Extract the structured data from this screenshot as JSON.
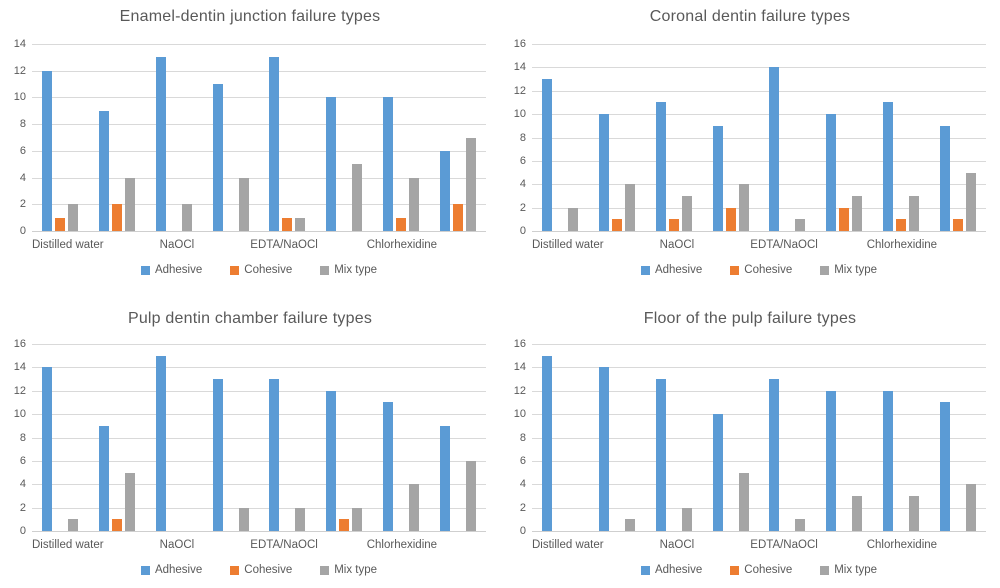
{
  "figure": {
    "background": "#ffffff",
    "text_color": "#595959",
    "gridline_color": "#d9d9d9"
  },
  "series_colors": {
    "adhesive": "#5B9BD5",
    "cohesive": "#ED7D31",
    "mix_type": "#A5A5A5"
  },
  "chart_data": [
    {
      "type": "bar",
      "title": "Enamel-dentin junction failure types",
      "xlabel": "",
      "ylabel": "",
      "ylim": [
        0,
        14
      ],
      "ytick_step": 2,
      "grid": true,
      "legend_position": "bottom",
      "categories": [
        "Distilled water",
        "NaOCl",
        "EDTA/NaOCl",
        "Chlorhexidine"
      ],
      "groups_per_category": 2,
      "series": [
        {
          "name": "Adhesive",
          "color": "#5B9BD5",
          "values": [
            12,
            9,
            13,
            11,
            13,
            10,
            10,
            6
          ]
        },
        {
          "name": "Cohesive",
          "color": "#ED7D31",
          "values": [
            1,
            2,
            null,
            null,
            1,
            null,
            1,
            2
          ]
        },
        {
          "name": "Mix type",
          "color": "#A5A5A5",
          "values": [
            2,
            4,
            2,
            4,
            1,
            5,
            4,
            7
          ]
        }
      ]
    },
    {
      "type": "bar",
      "title": "Coronal dentin failure types",
      "xlabel": "",
      "ylabel": "",
      "ylim": [
        0,
        16
      ],
      "ytick_step": 2,
      "grid": true,
      "legend_position": "bottom",
      "categories": [
        "Distilled water",
        "NaOCl",
        "EDTA/NaOCl",
        "Chlorhexidine"
      ],
      "groups_per_category": 2,
      "series": [
        {
          "name": "Adhesive",
          "color": "#5B9BD5",
          "values": [
            13,
            10,
            11,
            9,
            14,
            10,
            11,
            9
          ]
        },
        {
          "name": "Cohesive",
          "color": "#ED7D31",
          "values": [
            null,
            1,
            1,
            2,
            null,
            2,
            1,
            1
          ]
        },
        {
          "name": "Mix type",
          "color": "#A5A5A5",
          "values": [
            2,
            4,
            3,
            4,
            1,
            3,
            3,
            5
          ]
        }
      ]
    },
    {
      "type": "bar",
      "title": "Pulp dentin chamber failure types",
      "xlabel": "",
      "ylabel": "",
      "ylim": [
        0,
        16
      ],
      "ytick_step": 2,
      "grid": true,
      "legend_position": "bottom",
      "categories": [
        "Distilled water",
        "NaOCl",
        "EDTA/NaOCl",
        "Chlorhexidine"
      ],
      "groups_per_category": 2,
      "series": [
        {
          "name": "Adhesive",
          "color": "#5B9BD5",
          "values": [
            14,
            9,
            15,
            13,
            13,
            12,
            11,
            9
          ]
        },
        {
          "name": "Cohesive",
          "color": "#ED7D31",
          "values": [
            null,
            1,
            null,
            null,
            null,
            1,
            null,
            null
          ]
        },
        {
          "name": "Mix type",
          "color": "#A5A5A5",
          "values": [
            1,
            5,
            null,
            2,
            2,
            2,
            4,
            6
          ]
        }
      ]
    },
    {
      "type": "bar",
      "title": "Floor of the pulp failure types",
      "xlabel": "",
      "ylabel": "",
      "ylim": [
        0,
        16
      ],
      "ytick_step": 2,
      "grid": true,
      "legend_position": "bottom",
      "categories": [
        "Distilled water",
        "NaOCl",
        "EDTA/NaOCl",
        "Chlorhexidine"
      ],
      "groups_per_category": 2,
      "series": [
        {
          "name": "Adhesive",
          "color": "#5B9BD5",
          "values": [
            15,
            14,
            13,
            10,
            13,
            12,
            12,
            11
          ]
        },
        {
          "name": "Cohesive",
          "color": "#ED7D31",
          "values": [
            null,
            null,
            null,
            null,
            null,
            null,
            null,
            null
          ]
        },
        {
          "name": "Mix type",
          "color": "#A5A5A5",
          "values": [
            null,
            1,
            2,
            5,
            1,
            3,
            3,
            4
          ]
        }
      ]
    }
  ]
}
